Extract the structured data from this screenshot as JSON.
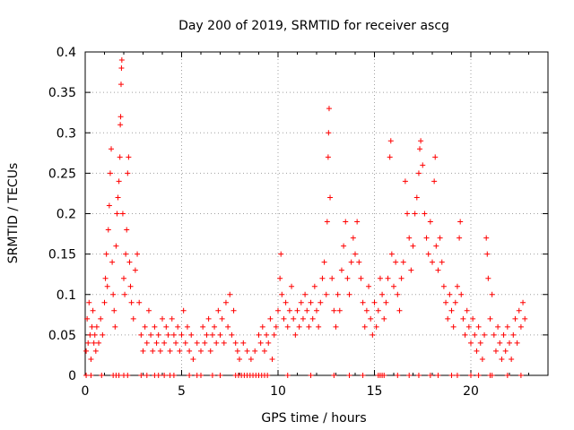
{
  "chart_data": {
    "type": "scatter",
    "title": "Day 200 of 2019, SRMTID for receiver ascg",
    "xlabel": "GPS time / hours",
    "ylabel": "SRMTID / TECUs",
    "xlim": [
      0,
      24
    ],
    "ylim": [
      0,
      0.4
    ],
    "xticks": [
      0,
      5,
      10,
      15,
      20
    ],
    "xtick_labels": [
      "0",
      "5",
      "10",
      "15",
      "20"
    ],
    "yticks": [
      0,
      0.05,
      0.1,
      0.15,
      0.2,
      0.25,
      0.3,
      0.35,
      0.4
    ],
    "ytick_labels": [
      "0",
      "0.05",
      "0.1",
      "0.15",
      "0.2",
      "0.25",
      "0.3",
      "0.35",
      "0.4"
    ],
    "grid": true,
    "marker": "plus",
    "color": "#ff0000",
    "series": [
      {
        "name": "SRMTID",
        "points": [
          [
            0.05,
            0.03
          ],
          [
            0.1,
            0.07
          ],
          [
            0.15,
            0.04
          ],
          [
            0.2,
            0.09
          ],
          [
            0.25,
            0.05
          ],
          [
            0.3,
            0.02
          ],
          [
            0.35,
            0.06
          ],
          [
            0.4,
            0.08
          ],
          [
            0.45,
            0.04
          ],
          [
            0.5,
            0.05
          ],
          [
            0.55,
            0.03
          ],
          [
            0.6,
            0.06
          ],
          [
            0.7,
            0.04
          ],
          [
            0.8,
            0.07
          ],
          [
            0.9,
            0.05
          ],
          [
            1.0,
            0.09
          ],
          [
            1.05,
            0.12
          ],
          [
            1.1,
            0.15
          ],
          [
            1.15,
            0.11
          ],
          [
            1.2,
            0.18
          ],
          [
            1.25,
            0.21
          ],
          [
            1.3,
            0.25
          ],
          [
            1.35,
            0.28
          ],
          [
            1.4,
            0.14
          ],
          [
            1.45,
            0.1
          ],
          [
            1.5,
            0.08
          ],
          [
            1.55,
            0.06
          ],
          [
            1.6,
            0.16
          ],
          [
            1.65,
            0.2
          ],
          [
            1.7,
            0.22
          ],
          [
            1.75,
            0.24
          ],
          [
            1.8,
            0.27
          ],
          [
            1.82,
            0.31
          ],
          [
            1.84,
            0.32
          ],
          [
            1.86,
            0.36
          ],
          [
            1.88,
            0.38
          ],
          [
            1.9,
            0.39
          ],
          [
            1.95,
            0.2
          ],
          [
            2.0,
            0.12
          ],
          [
            2.05,
            0.1
          ],
          [
            2.1,
            0.15
          ],
          [
            2.15,
            0.18
          ],
          [
            2.2,
            0.25
          ],
          [
            2.25,
            0.27
          ],
          [
            2.3,
            0.14
          ],
          [
            2.35,
            0.11
          ],
          [
            2.4,
            0.09
          ],
          [
            2.5,
            0.07
          ],
          [
            2.6,
            0.13
          ],
          [
            2.7,
            0.15
          ],
          [
            2.8,
            0.09
          ],
          [
            2.9,
            0.05
          ],
          [
            3.0,
            0.03
          ],
          [
            3.1,
            0.06
          ],
          [
            3.2,
            0.04
          ],
          [
            3.3,
            0.08
          ],
          [
            3.4,
            0.05
          ],
          [
            3.5,
            0.03
          ],
          [
            3.6,
            0.06
          ],
          [
            3.7,
            0.04
          ],
          [
            3.8,
            0.05
          ],
          [
            3.9,
            0.03
          ],
          [
            4.0,
            0.07
          ],
          [
            4.1,
            0.04
          ],
          [
            4.2,
            0.06
          ],
          [
            4.3,
            0.05
          ],
          [
            4.4,
            0.03
          ],
          [
            4.5,
            0.07
          ],
          [
            4.6,
            0.05
          ],
          [
            4.7,
            0.04
          ],
          [
            4.8,
            0.06
          ],
          [
            4.9,
            0.03
          ],
          [
            5.0,
            0.05
          ],
          [
            5.1,
            0.08
          ],
          [
            5.2,
            0.04
          ],
          [
            5.3,
            0.06
          ],
          [
            5.4,
            0.03
          ],
          [
            5.5,
            0.05
          ],
          [
            5.6,
            0.02
          ],
          [
            5.8,
            0.04
          ],
          [
            6.0,
            0.03
          ],
          [
            6.1,
            0.06
          ],
          [
            6.2,
            0.04
          ],
          [
            6.3,
            0.05
          ],
          [
            6.4,
            0.07
          ],
          [
            6.5,
            0.03
          ],
          [
            6.6,
            0.05
          ],
          [
            6.7,
            0.06
          ],
          [
            6.8,
            0.04
          ],
          [
            6.9,
            0.08
          ],
          [
            7.0,
            0.05
          ],
          [
            7.1,
            0.07
          ],
          [
            7.2,
            0.04
          ],
          [
            7.3,
            0.09
          ],
          [
            7.4,
            0.06
          ],
          [
            7.5,
            0.1
          ],
          [
            7.6,
            0.05
          ],
          [
            7.7,
            0.08
          ],
          [
            7.8,
            0.04
          ],
          [
            7.9,
            0.03
          ],
          [
            8.0,
            0.02
          ],
          [
            8.2,
            0.04
          ],
          [
            8.4,
            0.03
          ],
          [
            8.6,
            0.02
          ],
          [
            8.8,
            0.03
          ],
          [
            9.0,
            0.05
          ],
          [
            9.1,
            0.04
          ],
          [
            9.2,
            0.06
          ],
          [
            9.3,
            0.03
          ],
          [
            9.4,
            0.05
          ],
          [
            9.5,
            0.04
          ],
          [
            9.6,
            0.07
          ],
          [
            9.7,
            0.02
          ],
          [
            9.8,
            0.05
          ],
          [
            9.9,
            0.06
          ],
          [
            10.0,
            0.08
          ],
          [
            10.1,
            0.12
          ],
          [
            10.15,
            0.15
          ],
          [
            10.2,
            0.1
          ],
          [
            10.3,
            0.07
          ],
          [
            10.4,
            0.09
          ],
          [
            10.5,
            0.06
          ],
          [
            10.6,
            0.08
          ],
          [
            10.7,
            0.11
          ],
          [
            10.8,
            0.07
          ],
          [
            10.9,
            0.05
          ],
          [
            11.0,
            0.08
          ],
          [
            11.1,
            0.06
          ],
          [
            11.2,
            0.09
          ],
          [
            11.3,
            0.07
          ],
          [
            11.4,
            0.1
          ],
          [
            11.5,
            0.08
          ],
          [
            11.6,
            0.06
          ],
          [
            11.7,
            0.09
          ],
          [
            11.8,
            0.07
          ],
          [
            11.9,
            0.11
          ],
          [
            12.0,
            0.08
          ],
          [
            12.1,
            0.06
          ],
          [
            12.2,
            0.09
          ],
          [
            12.3,
            0.12
          ],
          [
            12.4,
            0.14
          ],
          [
            12.5,
            0.1
          ],
          [
            12.55,
            0.19
          ],
          [
            12.6,
            0.27
          ],
          [
            12.62,
            0.3
          ],
          [
            12.65,
            0.33
          ],
          [
            12.7,
            0.22
          ],
          [
            12.8,
            0.12
          ],
          [
            12.9,
            0.08
          ],
          [
            13.0,
            0.06
          ],
          [
            13.1,
            0.1
          ],
          [
            13.2,
            0.08
          ],
          [
            13.3,
            0.13
          ],
          [
            13.4,
            0.16
          ],
          [
            13.5,
            0.19
          ],
          [
            13.6,
            0.12
          ],
          [
            13.7,
            0.1
          ],
          [
            13.8,
            0.14
          ],
          [
            13.9,
            0.17
          ],
          [
            14.0,
            0.15
          ],
          [
            14.1,
            0.19
          ],
          [
            14.2,
            0.14
          ],
          [
            14.3,
            0.12
          ],
          [
            14.4,
            0.09
          ],
          [
            14.5,
            0.06
          ],
          [
            14.6,
            0.08
          ],
          [
            14.7,
            0.11
          ],
          [
            14.8,
            0.07
          ],
          [
            14.9,
            0.05
          ],
          [
            15.0,
            0.09
          ],
          [
            15.1,
            0.06
          ],
          [
            15.2,
            0.08
          ],
          [
            15.3,
            0.12
          ],
          [
            15.4,
            0.1
          ],
          [
            15.5,
            0.07
          ],
          [
            15.6,
            0.09
          ],
          [
            15.7,
            0.12
          ],
          [
            15.8,
            0.27
          ],
          [
            15.85,
            0.29
          ],
          [
            15.9,
            0.15
          ],
          [
            16.0,
            0.11
          ],
          [
            16.1,
            0.14
          ],
          [
            16.2,
            0.1
          ],
          [
            16.3,
            0.08
          ],
          [
            16.4,
            0.12
          ],
          [
            16.5,
            0.14
          ],
          [
            16.6,
            0.24
          ],
          [
            16.7,
            0.2
          ],
          [
            16.8,
            0.17
          ],
          [
            16.9,
            0.13
          ],
          [
            17.0,
            0.16
          ],
          [
            17.1,
            0.2
          ],
          [
            17.2,
            0.22
          ],
          [
            17.3,
            0.25
          ],
          [
            17.35,
            0.28
          ],
          [
            17.4,
            0.29
          ],
          [
            17.5,
            0.26
          ],
          [
            17.6,
            0.2
          ],
          [
            17.7,
            0.17
          ],
          [
            17.8,
            0.15
          ],
          [
            17.9,
            0.19
          ],
          [
            18.0,
            0.14
          ],
          [
            18.1,
            0.24
          ],
          [
            18.15,
            0.27
          ],
          [
            18.2,
            0.16
          ],
          [
            18.3,
            0.13
          ],
          [
            18.4,
            0.17
          ],
          [
            18.5,
            0.14
          ],
          [
            18.6,
            0.11
          ],
          [
            18.7,
            0.09
          ],
          [
            18.8,
            0.07
          ],
          [
            18.9,
            0.1
          ],
          [
            19.0,
            0.08
          ],
          [
            19.1,
            0.06
          ],
          [
            19.2,
            0.09
          ],
          [
            19.3,
            0.11
          ],
          [
            19.4,
            0.17
          ],
          [
            19.45,
            0.19
          ],
          [
            19.5,
            0.1
          ],
          [
            19.6,
            0.07
          ],
          [
            19.7,
            0.05
          ],
          [
            19.8,
            0.08
          ],
          [
            19.9,
            0.06
          ],
          [
            20.0,
            0.04
          ],
          [
            20.1,
            0.07
          ],
          [
            20.2,
            0.05
          ],
          [
            20.3,
            0.03
          ],
          [
            20.4,
            0.06
          ],
          [
            20.5,
            0.04
          ],
          [
            20.6,
            0.02
          ],
          [
            20.7,
            0.05
          ],
          [
            20.8,
            0.17
          ],
          [
            20.85,
            0.15
          ],
          [
            20.9,
            0.12
          ],
          [
            21.0,
            0.07
          ],
          [
            21.1,
            0.1
          ],
          [
            21.2,
            0.05
          ],
          [
            21.3,
            0.03
          ],
          [
            21.4,
            0.06
          ],
          [
            21.5,
            0.04
          ],
          [
            21.6,
            0.02
          ],
          [
            21.7,
            0.05
          ],
          [
            21.8,
            0.03
          ],
          [
            21.9,
            0.06
          ],
          [
            22.0,
            0.04
          ],
          [
            22.1,
            0.02
          ],
          [
            22.2,
            0.05
          ],
          [
            22.3,
            0.07
          ],
          [
            22.4,
            0.04
          ],
          [
            22.5,
            0.08
          ],
          [
            22.6,
            0.06
          ],
          [
            22.7,
            0.09
          ],
          [
            22.8,
            0.07
          ],
          [
            0.05,
            0.0
          ],
          [
            0.3,
            0.0
          ],
          [
            0.85,
            0.0
          ],
          [
            1.45,
            0.0
          ],
          [
            1.6,
            0.0
          ],
          [
            1.75,
            0.0
          ],
          [
            2.0,
            0.0
          ],
          [
            2.2,
            0.0
          ],
          [
            2.9,
            0.0
          ],
          [
            3.2,
            0.0
          ],
          [
            3.6,
            0.0
          ],
          [
            3.8,
            0.0
          ],
          [
            4.1,
            0.0
          ],
          [
            4.4,
            0.0
          ],
          [
            4.6,
            0.0
          ],
          [
            5.4,
            0.0
          ],
          [
            5.8,
            0.0
          ],
          [
            6.0,
            0.0
          ],
          [
            6.6,
            0.0
          ],
          [
            7.0,
            0.0
          ],
          [
            7.8,
            0.0
          ],
          [
            7.95,
            0.0
          ],
          [
            8.1,
            0.0
          ],
          [
            8.25,
            0.0
          ],
          [
            8.4,
            0.0
          ],
          [
            8.55,
            0.0
          ],
          [
            8.7,
            0.0
          ],
          [
            8.85,
            0.0
          ],
          [
            9.0,
            0.0
          ],
          [
            9.15,
            0.0
          ],
          [
            9.3,
            0.0
          ],
          [
            9.45,
            0.0
          ],
          [
            10.5,
            0.0
          ],
          [
            11.7,
            0.0
          ],
          [
            12.9,
            0.0
          ],
          [
            13.7,
            0.0
          ],
          [
            14.4,
            0.0
          ],
          [
            15.2,
            0.0
          ],
          [
            15.3,
            0.0
          ],
          [
            15.4,
            0.0
          ],
          [
            15.5,
            0.0
          ],
          [
            16.2,
            0.0
          ],
          [
            16.8,
            0.0
          ],
          [
            17.3,
            0.0
          ],
          [
            17.9,
            0.0
          ],
          [
            18.3,
            0.0
          ],
          [
            19.0,
            0.0
          ],
          [
            19.3,
            0.0
          ],
          [
            20.0,
            0.0
          ],
          [
            20.4,
            0.0
          ],
          [
            21.0,
            0.0
          ],
          [
            21.1,
            0.0
          ],
          [
            21.9,
            0.0
          ],
          [
            22.6,
            0.0
          ]
        ]
      }
    ]
  }
}
